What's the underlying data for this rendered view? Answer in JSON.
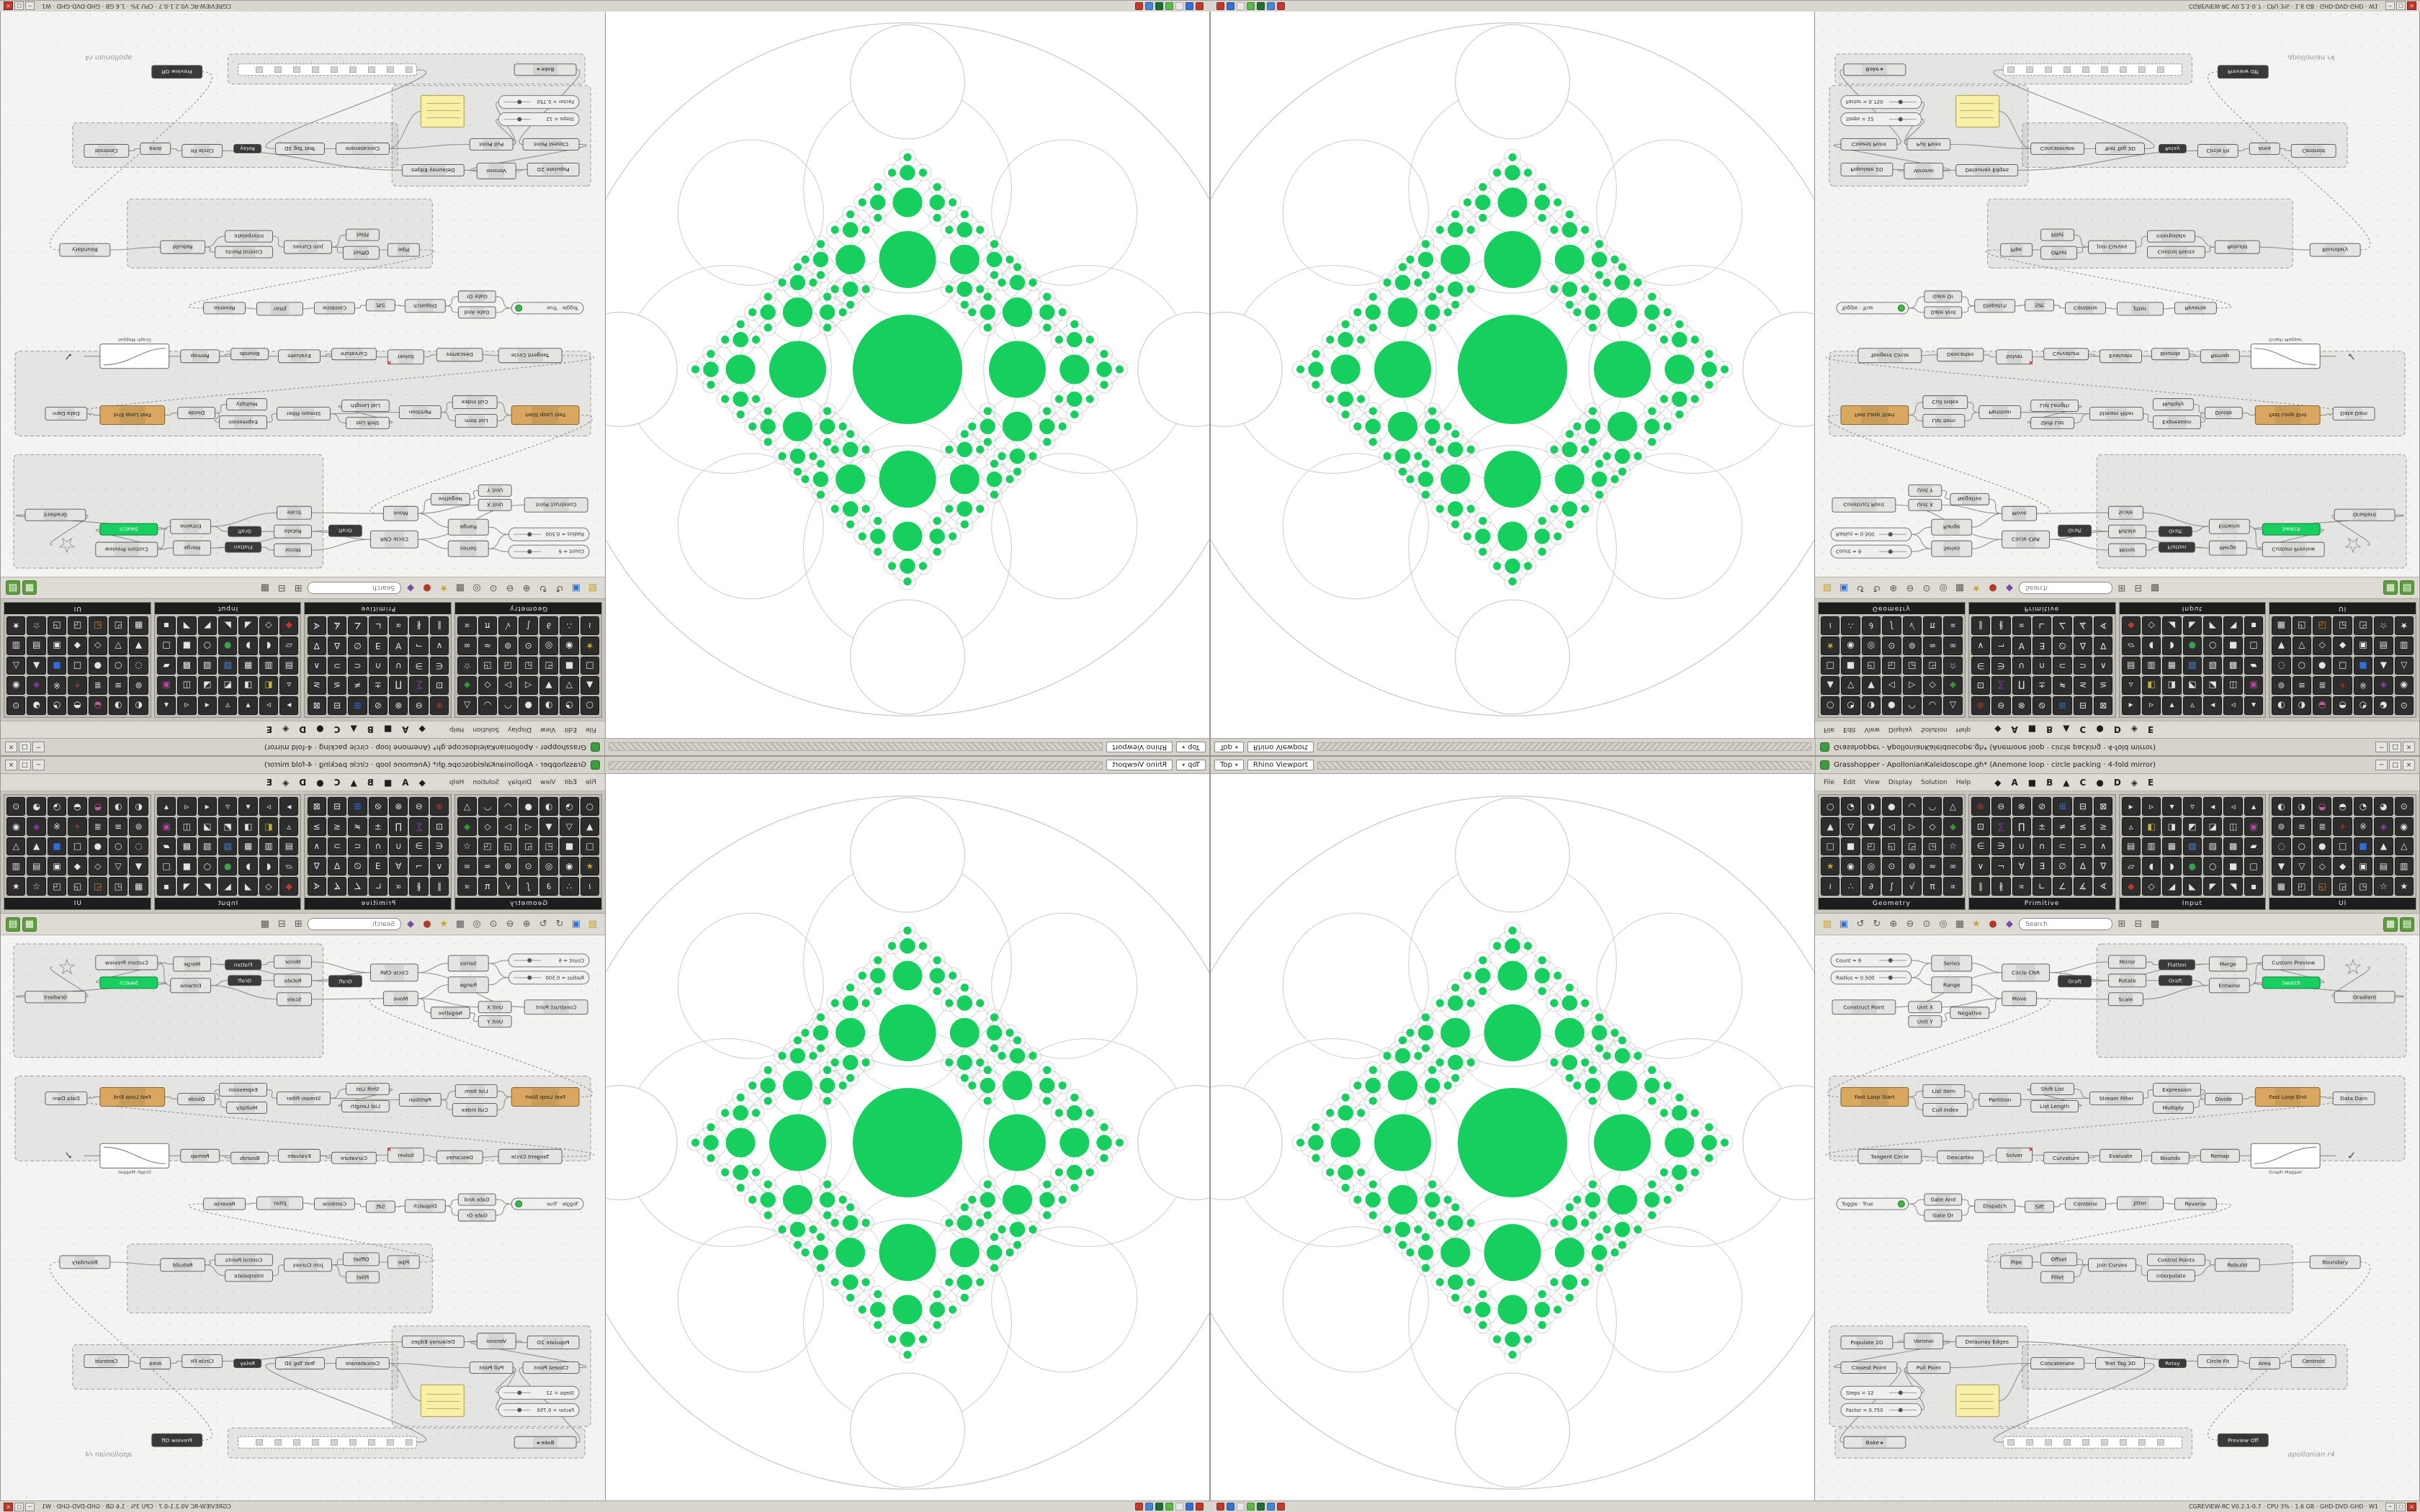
{
  "window": {
    "gh_title": "Grasshopper - ApollonianKaleidoscope.gh* (Anemone loop · circle packing · 4-fold mirror)",
    "vp_label": "Rhino Viewport",
    "vp_tab": "Top",
    "win_buttons": [
      "─",
      "□",
      "×"
    ]
  },
  "os_strip": {
    "status_text": "CGREVIEW-RC  V0.2.1-0.7  ·  CPU 3%  ·  1.6 GB  ·  GHD-DVD-GHD  ·  W1",
    "taskbar_colors": [
      "#c0392b",
      "#3a6fd0",
      "#e8e8e8",
      "#58b948",
      "#1f6e35",
      "#4a84d8",
      "#c23a2e"
    ],
    "buttons": [
      "─",
      "□",
      "×"
    ]
  },
  "menu": [
    "File",
    "Edit",
    "View",
    "Display",
    "Solution",
    "Help"
  ],
  "tabs": [
    "◆",
    "A",
    "■",
    "B",
    "▲",
    "C",
    "●",
    "D",
    "◈",
    "E"
  ],
  "palette": {
    "sections": [
      {
        "label": "Geometry",
        "glyphs": "○◔◑●◠◡△▲▽▼◁▷◇◆□■◰◱◲◳☆★◉◎⊙⊚≈∞≀∴∂∫√π∝",
        "colors": {
          "13": "#3a8f3a",
          "21": "#c9a227"
        }
      },
      {
        "label": "Primitive",
        "glyphs": "⊕⊖⊗⊘⊞⊟⊠⊡∑∏±≠≤≥∈∋∪∩⊂⊃∧∨¬∀∃∅∆∇∥∦∝∟∠∡∢",
        "colors": {
          "0": "#b03a2e",
          "4": "#2e6fd8",
          "8": "#7d3c98"
        }
      },
      {
        "label": "Input",
        "glyphs": "▸▹▾▿◂◃▴▵◧◨◩◪◫▣▤▥▦▧▨▩▰▱◖◗●○■□◆◇◢◣◤◥▪",
        "colors": {
          "8": "#c2b13a",
          "13": "#b5489a",
          "17": "#4a84d8",
          "24": "#3aa24a",
          "28": "#c0392b"
        }
      },
      {
        "label": "UI",
        "glyphs": "◐◑◒◓◔◕⊙⊚≡≣+※◈◉◌○●□■▲△▼▽◇◆▣▤▥▦◰◱◲◳☆★",
        "colors": {
          "2": "#c75b9b",
          "10": "#c0392b",
          "12": "#8e44ad",
          "18": "#2e6fd8",
          "30": "#d4882a"
        }
      }
    ]
  },
  "toolbar": {
    "search_placeholder": "Search",
    "icons": [
      {
        "g": "▨",
        "c": "#c9a227"
      },
      {
        "g": "▣",
        "c": "#2e6fd8"
      },
      {
        "g": "↺"
      },
      {
        "g": "↻"
      },
      {
        "g": "⊕"
      },
      {
        "g": "⊖"
      },
      {
        "g": "⊙"
      },
      {
        "g": "◎"
      },
      {
        "g": "▦"
      },
      {
        "g": "★",
        "c": "#c9a227"
      },
      {
        "g": "●",
        "c": "#b03a2e"
      },
      {
        "g": "◆",
        "c": "#7a4a9e"
      },
      {
        "search": true
      },
      {
        "g": "⊞"
      },
      {
        "g": "⊟"
      },
      {
        "g": "▩"
      },
      {
        "sp": true
      },
      {
        "g": "▦",
        "bg": "#5f9e3f",
        "c": "#ffffff"
      },
      {
        "g": "▤",
        "bg": "#5f9e3f",
        "c": "#ffffff"
      }
    ]
  },
  "viewport": {
    "green": "#17cf5e",
    "outline": "#cdcdcd",
    "params": {
      "r0": 0.158,
      "ratio": 0.52,
      "gap": 1.32,
      "depth": 4
    }
  },
  "canvas": {
    "groups": [
      [
        392,
        12,
        430,
        158
      ],
      [
        20,
        196,
        800,
        118
      ],
      [
        240,
        430,
        424,
        96
      ],
      [
        20,
        544,
        276,
        140
      ],
      [
        288,
        570,
        452,
        62
      ],
      [
        28,
        686,
        496,
        42
      ]
    ],
    "nodes": [
      [
        22,
        26,
        112,
        18,
        "Count = 6",
        "slider"
      ],
      [
        22,
        50,
        112,
        18,
        "Radius = 0.500",
        "slider"
      ],
      [
        162,
        28,
        56,
        22,
        "Series",
        "std"
      ],
      [
        162,
        58,
        56,
        22,
        "Range",
        "std"
      ],
      [
        24,
        90,
        88,
        20,
        "Construct Point",
        "std"
      ],
      [
        130,
        92,
        46,
        16,
        "Unit X",
        "std"
      ],
      [
        130,
        112,
        46,
        16,
        "Unit Y",
        "std"
      ],
      [
        188,
        100,
        54,
        16,
        "Negative",
        "std"
      ],
      [
        260,
        40,
        66,
        24,
        "Circle CNR",
        "std"
      ],
      [
        260,
        78,
        48,
        20,
        "Move",
        "std"
      ],
      [
        338,
        56,
        46,
        16,
        "Graft",
        "dark"
      ],
      [
        408,
        28,
        52,
        18,
        "Mirror",
        "std"
      ],
      [
        408,
        54,
        52,
        18,
        "Rotate",
        "std"
      ],
      [
        408,
        80,
        48,
        18,
        "Scale",
        "std"
      ],
      [
        478,
        34,
        50,
        14,
        "Flatten",
        "dark"
      ],
      [
        478,
        56,
        46,
        14,
        "Graft",
        "dark"
      ],
      [
        548,
        30,
        52,
        20,
        "Merge",
        "std"
      ],
      [
        548,
        60,
        56,
        20,
        "Entwine",
        "std"
      ],
      [
        622,
        28,
        86,
        20,
        "Custom Preview",
        "std"
      ],
      [
        622,
        58,
        80,
        16,
        "Swatch",
        "swatch"
      ],
      [
        728,
        24,
        40,
        40,
        "☆",
        "star"
      ],
      [
        722,
        78,
        84,
        16,
        "Gradient",
        "std"
      ],
      [
        36,
        212,
        94,
        26,
        "Fast Loop Start",
        "tan"
      ],
      [
        150,
        208,
        58,
        18,
        "List Item",
        "std"
      ],
      [
        150,
        234,
        62,
        18,
        "Cull Index",
        "std"
      ],
      [
        228,
        220,
        58,
        18,
        "Partition",
        "std"
      ],
      [
        300,
        206,
        60,
        16,
        "Shift List",
        "std"
      ],
      [
        300,
        230,
        66,
        16,
        "List Length",
        "std"
      ],
      [
        382,
        218,
        74,
        18,
        "Stream Filter",
        "std"
      ],
      [
        470,
        206,
        66,
        18,
        "Expression",
        "std"
      ],
      [
        470,
        232,
        56,
        16,
        "Multiply",
        "std"
      ],
      [
        542,
        220,
        52,
        16,
        "Divide",
        "std"
      ],
      [
        612,
        212,
        90,
        26,
        "Fast Loop End",
        "tan"
      ],
      [
        720,
        218,
        58,
        18,
        "Data Dam",
        "std"
      ],
      [
        60,
        298,
        88,
        20,
        "Tangent Circle",
        "std"
      ],
      [
        170,
        300,
        64,
        18,
        "Descartes",
        "std"
      ],
      [
        252,
        296,
        50,
        20,
        "Solver",
        "err"
      ],
      [
        318,
        302,
        62,
        16,
        "Curvature",
        "std"
      ],
      [
        396,
        298,
        58,
        18,
        "Evaluate",
        "std"
      ],
      [
        468,
        302,
        52,
        16,
        "Bounds",
        "std"
      ],
      [
        536,
        298,
        54,
        18,
        "Remap",
        "std"
      ],
      [
        606,
        290,
        96,
        34,
        "Graph Mapper",
        "graph"
      ],
      [
        724,
        298,
        44,
        18,
        "✓",
        "glyph"
      ],
      [
        30,
        366,
        100,
        16,
        "Toggle · True",
        "toggle"
      ],
      [
        152,
        360,
        52,
        16,
        "Gate And",
        "std"
      ],
      [
        152,
        382,
        52,
        16,
        "Gate Or",
        "std"
      ],
      [
        222,
        368,
        56,
        18,
        "Dispatch",
        "std"
      ],
      [
        292,
        370,
        40,
        16,
        "Sift",
        "std"
      ],
      [
        348,
        366,
        56,
        16,
        "Combine",
        "std"
      ],
      [
        420,
        364,
        64,
        18,
        "Jitter",
        "std"
      ],
      [
        500,
        366,
        58,
        16,
        "Reverse",
        "std"
      ],
      [
        258,
        446,
        44,
        18,
        "Pipe",
        "std"
      ],
      [
        314,
        442,
        50,
        18,
        "Offset",
        "std"
      ],
      [
        314,
        468,
        46,
        16,
        "Fillet",
        "std"
      ],
      [
        380,
        450,
        66,
        18,
        "Join Curves",
        "std"
      ],
      [
        462,
        444,
        80,
        16,
        "Control Points",
        "std"
      ],
      [
        462,
        466,
        66,
        16,
        "Interpolate",
        "std"
      ],
      [
        556,
        450,
        62,
        18,
        "Rebuild",
        "std"
      ],
      [
        688,
        446,
        70,
        18,
        "Boundary",
        "std"
      ],
      [
        36,
        558,
        72,
        18,
        "Populate 2D",
        "std"
      ],
      [
        124,
        554,
        54,
        22,
        "Voronoi",
        "std"
      ],
      [
        196,
        558,
        86,
        16,
        "Delaunay Edges",
        "std"
      ],
      [
        36,
        594,
        78,
        16,
        "Closest Point",
        "std"
      ],
      [
        128,
        594,
        60,
        16,
        "Pull Point",
        "std"
      ],
      [
        36,
        628,
        112,
        18,
        "Steps = 12",
        "slider"
      ],
      [
        36,
        652,
        112,
        18,
        "Factor = 0.750",
        "slider"
      ],
      [
        196,
        626,
        60,
        44,
        "",
        "panel"
      ],
      [
        300,
        588,
        74,
        16,
        "Concatenate",
        "std"
      ],
      [
        390,
        588,
        68,
        16,
        "Text Tag 3D",
        "std"
      ],
      [
        478,
        590,
        38,
        12,
        "Relay",
        "dark"
      ],
      [
        532,
        584,
        56,
        18,
        "Circle Fit",
        "std"
      ],
      [
        604,
        588,
        42,
        16,
        "Area",
        "std"
      ],
      [
        662,
        584,
        62,
        18,
        "Centroid",
        "std"
      ],
      [
        262,
        698,
        248,
        16,
        "",
        "list"
      ],
      [
        40,
        698,
        86,
        16,
        "Bake ▸",
        "std"
      ],
      [
        560,
        694,
        70,
        18,
        "Preview Off",
        "dark"
      ],
      [
        648,
        716,
        84,
        14,
        "apollonian r4",
        "scrib"
      ]
    ],
    "wires": [
      [
        0,
        2
      ],
      [
        1,
        2
      ],
      [
        1,
        3
      ],
      [
        2,
        8
      ],
      [
        3,
        9
      ],
      [
        4,
        8
      ],
      [
        5,
        9
      ],
      [
        6,
        7
      ],
      [
        7,
        9
      ],
      [
        8,
        11
      ],
      [
        8,
        12
      ],
      [
        9,
        13
      ],
      [
        10,
        16
      ],
      [
        11,
        14
      ],
      [
        12,
        15
      ],
      [
        13,
        17
      ],
      [
        14,
        16
      ],
      [
        15,
        17
      ],
      [
        16,
        18
      ],
      [
        17,
        18
      ],
      [
        19,
        18
      ],
      [
        21,
        19
      ],
      [
        20,
        21
      ],
      [
        9,
        22,
        1
      ],
      [
        22,
        23
      ],
      [
        22,
        24
      ],
      [
        23,
        25
      ],
      [
        24,
        25
      ],
      [
        25,
        28
      ],
      [
        26,
        28
      ],
      [
        27,
        26
      ],
      [
        28,
        29
      ],
      [
        29,
        31
      ],
      [
        30,
        31
      ],
      [
        31,
        32
      ],
      [
        32,
        33
      ],
      [
        32,
        34,
        1
      ],
      [
        34,
        35
      ],
      [
        35,
        36
      ],
      [
        36,
        38
      ],
      [
        37,
        38
      ],
      [
        38,
        40
      ],
      [
        39,
        40
      ],
      [
        40,
        41
      ],
      [
        41,
        42
      ],
      [
        43,
        44
      ],
      [
        43,
        45
      ],
      [
        44,
        46
      ],
      [
        45,
        46
      ],
      [
        46,
        47
      ],
      [
        47,
        48
      ],
      [
        48,
        49
      ],
      [
        49,
        50
      ],
      [
        50,
        51,
        1
      ],
      [
        51,
        54
      ],
      [
        52,
        54
      ],
      [
        53,
        54
      ],
      [
        54,
        56
      ],
      [
        55,
        57
      ],
      [
        56,
        57
      ],
      [
        57,
        58
      ],
      [
        58,
        75,
        1
      ],
      [
        59,
        60
      ],
      [
        59,
        61
      ],
      [
        60,
        62
      ],
      [
        64,
        63
      ],
      [
        65,
        63
      ],
      [
        63,
        67
      ],
      [
        66,
        67
      ],
      [
        67,
        68
      ],
      [
        68,
        73
      ],
      [
        70,
        71
      ],
      [
        71,
        72
      ],
      [
        61,
        70
      ],
      [
        62,
        74
      ]
    ]
  }
}
